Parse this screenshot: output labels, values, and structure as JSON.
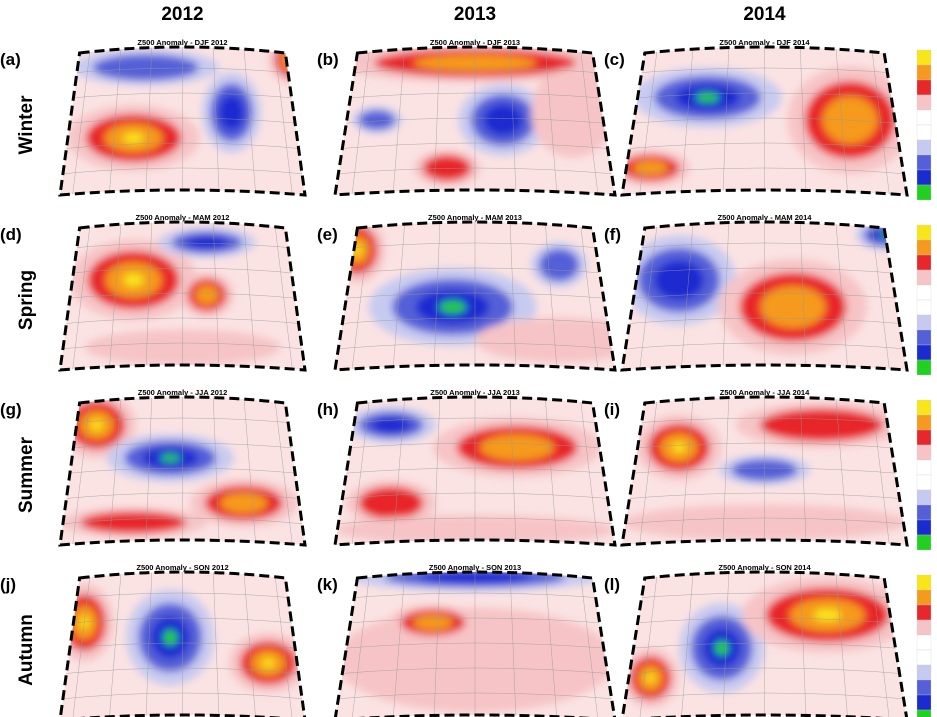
{
  "columns": [
    "2012",
    "2013",
    "2014"
  ],
  "rows": [
    {
      "label": "Winter",
      "panels": [
        {
          "letter": "(a)",
          "title": "Z500 Anomaly - DJF 2012"
        },
        {
          "letter": "(b)",
          "title": "Z500 Anomaly - DJF 2013"
        },
        {
          "letter": "(c)",
          "title": "Z500 Anomaly - DJF 2014"
        }
      ]
    },
    {
      "label": "Spring",
      "panels": [
        {
          "letter": "(d)",
          "title": "Z500 Anomaly - MAM 2012"
        },
        {
          "letter": "(e)",
          "title": "Z500 Anomaly - MAM 2013"
        },
        {
          "letter": "(f)",
          "title": "Z500 Anomaly - MAM 2014"
        }
      ]
    },
    {
      "label": "Summer",
      "panels": [
        {
          "letter": "(g)",
          "title": "Z500 Anomaly - JJA 2012"
        },
        {
          "letter": "(h)",
          "title": "Z500 Anomaly - JJA 2013"
        },
        {
          "letter": "(i)",
          "title": "Z500 Anomaly - JJA 2014"
        }
      ]
    },
    {
      "label": "Autumn",
      "panels": [
        {
          "letter": "(j)",
          "title": "Z500 Anomaly - SON 2012"
        },
        {
          "letter": "(k)",
          "title": "Z500 Anomaly - SON 2013"
        },
        {
          "letter": "(l)",
          "title": "Z500 Anomaly - SON 2014"
        }
      ]
    }
  ]
}
